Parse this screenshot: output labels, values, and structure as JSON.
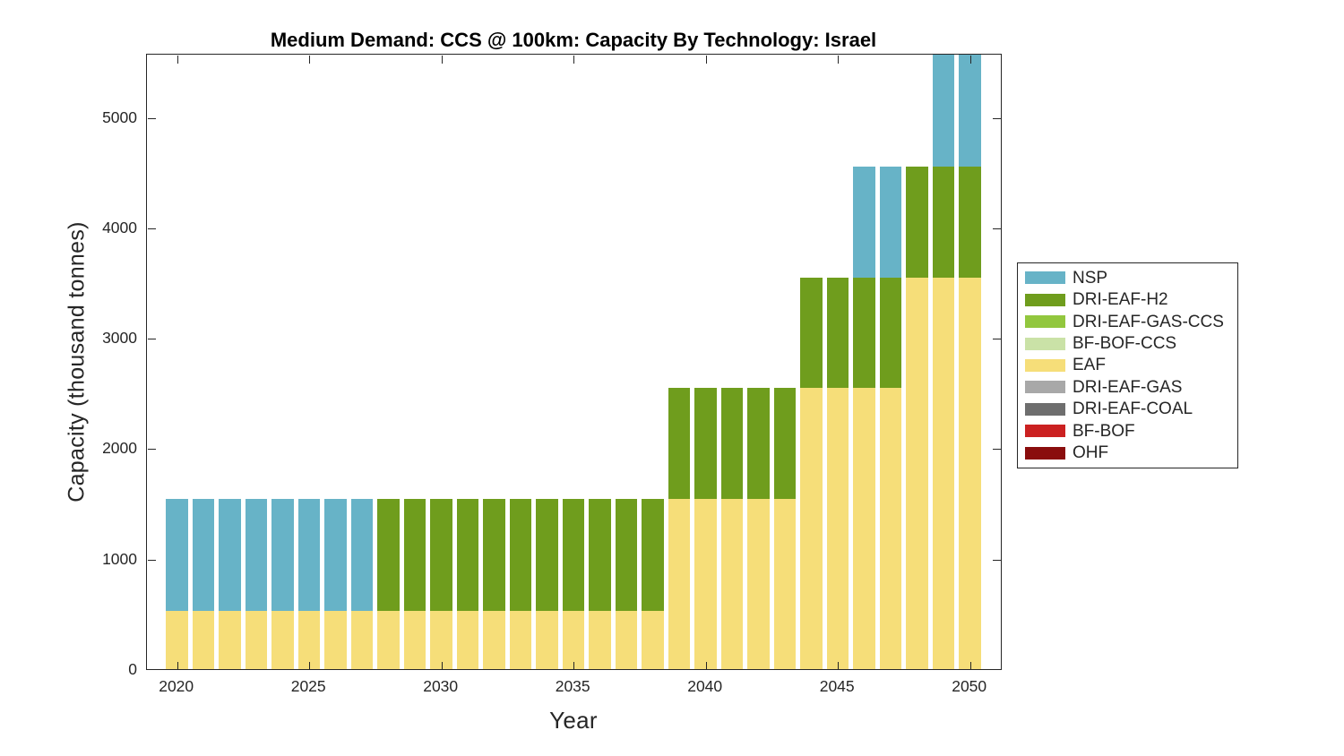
{
  "figure": {
    "background": "#FFFFFF",
    "text_color": "#262626",
    "title_color": "#000000"
  },
  "chart_data": {
    "type": "bar",
    "stacked": true,
    "title": "Medium Demand: CCS @ 100km: Capacity By Technology: Israel",
    "xlabel": "Year",
    "ylabel": "Capacity (thousand tonnes)",
    "x": [
      2020,
      2021,
      2022,
      2023,
      2024,
      2025,
      2026,
      2027,
      2028,
      2029,
      2030,
      2031,
      2032,
      2033,
      2034,
      2035,
      2036,
      2037,
      2038,
      2039,
      2040,
      2041,
      2042,
      2043,
      2044,
      2045,
      2046,
      2047,
      2048,
      2049,
      2050
    ],
    "xticks": [
      2020,
      2025,
      2030,
      2035,
      2040,
      2045,
      2050
    ],
    "yticks": [
      0,
      1000,
      2000,
      3000,
      4000,
      5000
    ],
    "ylim": [
      0,
      5580
    ],
    "grid": false,
    "legend_position": "outside-right",
    "stack_order_bottom_to_top": [
      "EAF",
      "DRI-EAF-H2",
      "NSP"
    ],
    "series": [
      {
        "name": "EAF",
        "color": "#F6DE79",
        "values": [
          530,
          530,
          530,
          530,
          530,
          530,
          530,
          530,
          530,
          530,
          530,
          530,
          530,
          530,
          530,
          530,
          530,
          530,
          530,
          1540,
          1540,
          1540,
          1540,
          1540,
          2545,
          2545,
          2545,
          2545,
          3545,
          3545,
          3545
        ]
      },
      {
        "name": "DRI-EAF-H2",
        "color": "#6F9D1D",
        "values": [
          0,
          0,
          0,
          0,
          0,
          0,
          0,
          0,
          1010,
          1010,
          1010,
          1010,
          1010,
          1010,
          1010,
          1010,
          1010,
          1010,
          1010,
          1005,
          1005,
          1005,
          1005,
          1005,
          1000,
          1000,
          1000,
          1000,
          1005,
          1005,
          1005
        ]
      },
      {
        "name": "NSP",
        "color": "#67B3C7",
        "values": [
          1010,
          1010,
          1010,
          1010,
          1010,
          1010,
          1010,
          1010,
          0,
          0,
          0,
          0,
          0,
          0,
          0,
          0,
          0,
          0,
          0,
          0,
          0,
          0,
          0,
          0,
          0,
          0,
          1005,
          1005,
          0,
          2030,
          2030
        ]
      }
    ],
    "legend": [
      {
        "label": "NSP",
        "color": "#67B3C7"
      },
      {
        "label": "DRI-EAF-H2",
        "color": "#6F9D1D"
      },
      {
        "label": "DRI-EAF-GAS-CCS",
        "color": "#92C73E"
      },
      {
        "label": "BF-BOF-CCS",
        "color": "#CAE2A7"
      },
      {
        "label": "EAF",
        "color": "#F6DE79"
      },
      {
        "label": "DRI-EAF-GAS",
        "color": "#A8A8A8"
      },
      {
        "label": "DRI-EAF-COAL",
        "color": "#6E6E6E"
      },
      {
        "label": "BF-BOF",
        "color": "#CB2121"
      },
      {
        "label": "OHF",
        "color": "#8A0D0D"
      }
    ],
    "note": "NSP segments in 2049 and 2050 reach the top of the axes and are clipped"
  }
}
